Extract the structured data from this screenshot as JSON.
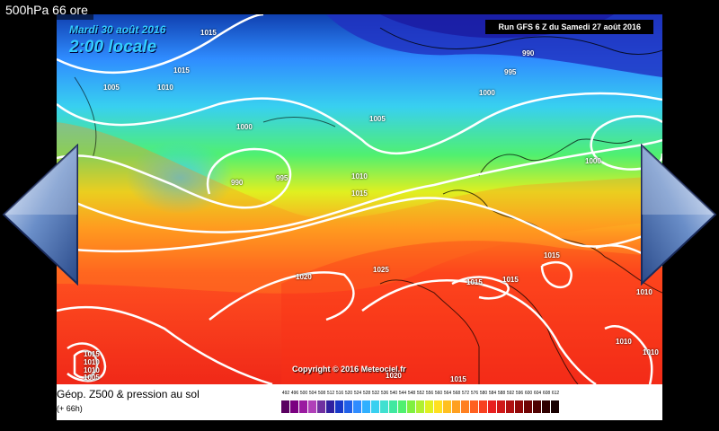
{
  "app": {
    "title": "500hPa 66 ore"
  },
  "map": {
    "date": "Mardi 30 août 2016",
    "time": "2:00 locale",
    "run": "Run GFS 6 Z du Samedi 27 août 2016",
    "copyright": "Copyright © 2016 Meteociel.fr",
    "pressure_labels": [
      "1015",
      "1015",
      "1005",
      "1010",
      "1000",
      "990",
      "995",
      "1005",
      "1010",
      "1015",
      "990",
      "995",
      "1000",
      "1000",
      "1020",
      "1025",
      "1015",
      "1015",
      "1015",
      "1010",
      "1010",
      "1010",
      "1020",
      "1015",
      "1015",
      "1010",
      "1010",
      "1005"
    ]
  },
  "legend": {
    "title": "Géop. Z500 & pression au sol",
    "subtitle": "(+ 66h)",
    "scale_values": [
      "492",
      "496",
      "500",
      "504",
      "508",
      "512",
      "516",
      "520",
      "524",
      "528",
      "532",
      "536",
      "540",
      "544",
      "548",
      "552",
      "556",
      "560",
      "564",
      "568",
      "572",
      "576",
      "580",
      "584",
      "588",
      "592",
      "596",
      "600",
      "604",
      "608",
      "612"
    ],
    "scale_colors": [
      "#5a0060",
      "#7a0080",
      "#9a1aa0",
      "#b040b8",
      "#7030a0",
      "#3020a0",
      "#1838c8",
      "#2060e8",
      "#2f8cff",
      "#30b0ff",
      "#38d0f0",
      "#40e0d0",
      "#40e8a0",
      "#50f070",
      "#80f040",
      "#b0f030",
      "#e0f020",
      "#ffe020",
      "#ffc020",
      "#ffa020",
      "#ff8020",
      "#ff6020",
      "#f84020",
      "#e82020",
      "#d01818",
      "#b01010",
      "#900808",
      "#700404",
      "#500202",
      "#300000",
      "#180000"
    ],
    "gradient_note": ""
  },
  "nav": {
    "prev_label": "",
    "next_label": ""
  }
}
